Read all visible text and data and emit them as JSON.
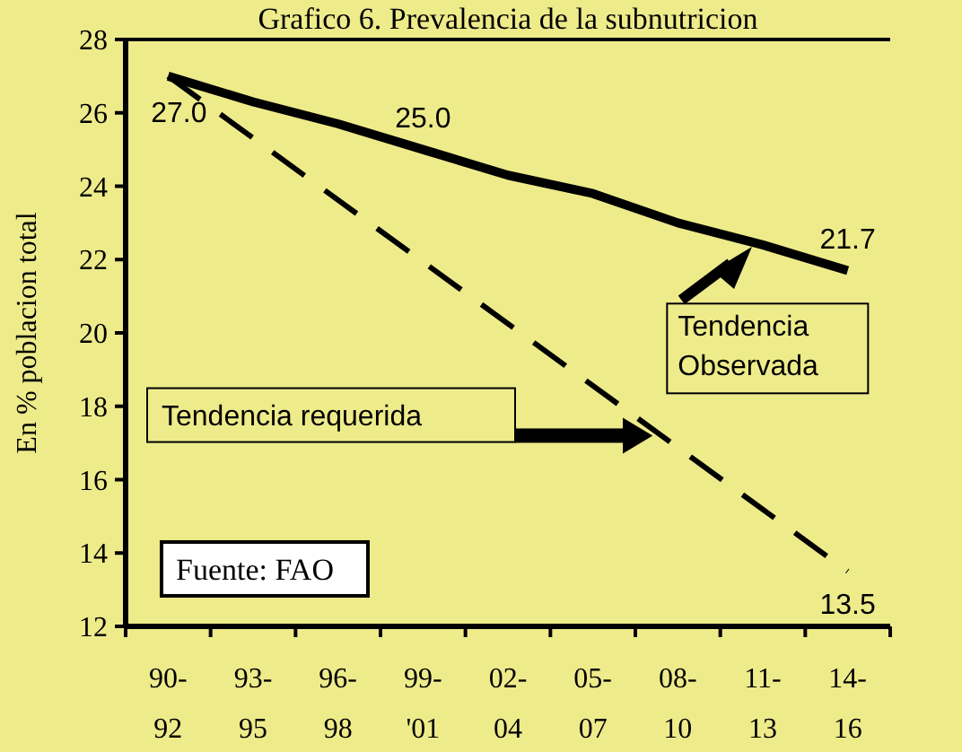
{
  "chart_data": {
    "type": "line",
    "title": "Grafico 6. Prevalencia de la subnutricion",
    "ylabel": "En % poblacion total",
    "categories": [
      "90-\n92",
      "93-\n95",
      "96-\n98",
      "99-\n'01",
      "02-\n04",
      "05-\n07",
      "08-\n10",
      "11-\n13",
      "14-\n16"
    ],
    "series": [
      {
        "color": "#000000",
        "line_style": "solid",
        "values": [
          27.0,
          26.3,
          25.7,
          25.0,
          24.3,
          23.8,
          23.0,
          22.4,
          21.7
        ],
        "value_labels": [
          "27.0",
          null,
          null,
          "25.0",
          null,
          null,
          null,
          null,
          "21.7"
        ]
      },
      {
        "color": "#000000",
        "line_style": "dashed",
        "values": [
          27.0,
          null,
          null,
          null,
          null,
          null,
          null,
          null,
          13.5
        ],
        "value_labels": [
          null,
          null,
          null,
          null,
          null,
          null,
          null,
          null,
          "13.5"
        ]
      }
    ],
    "ylim": [
      12,
      28
    ],
    "yticks": [
      12,
      14,
      16,
      18,
      20,
      22,
      24,
      26,
      28
    ],
    "marker": "none",
    "annotations": [
      "Tendencia requerida",
      "Tendencia Observada",
      "Fuente: FAO"
    ]
  }
}
